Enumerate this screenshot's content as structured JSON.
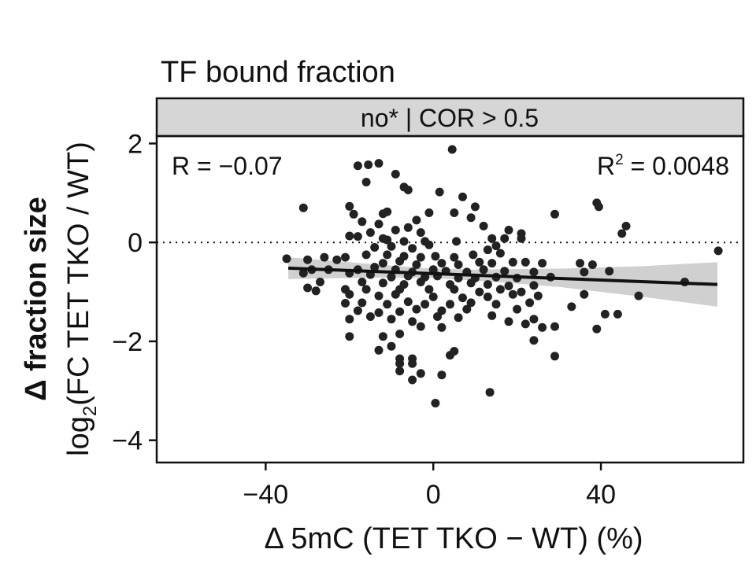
{
  "chart_data": {
    "type": "scatter",
    "title": "TF bound fraction",
    "facet_label": "no* | COR > 0.5",
    "xlabel": "Δ 5mC (TET TKO − WT) (%)",
    "ylabel_bold": "Δ fraction size",
    "ylabel_main": "log",
    "ylabel_sub": "2",
    "ylabel_rest": "(FC TET TKO / WT)",
    "annotation_left": "R = −0.07",
    "annotation_right_prefix": "R",
    "annotation_right_sup": "2",
    "annotation_right_suffix": " = 0.0048",
    "xlim": [
      -66,
      74
    ],
    "ylim": [
      -4.45,
      2.15
    ],
    "x_ticks": [
      -40,
      0,
      40
    ],
    "x_tick_labels": [
      "−40",
      "0",
      "40"
    ],
    "y_ticks": [
      2,
      0,
      -2,
      -4
    ],
    "y_tick_labels": [
      "2",
      "0",
      "−2",
      "−4"
    ],
    "reference_line_y": 0,
    "point_color": "#222222",
    "fit_color": "#111111",
    "band_color": "#c8c8c8",
    "facet_color": "#d6d6d6",
    "fit_line": {
      "x": [
        -34.6,
        67.8
      ],
      "y": [
        -0.52,
        -0.85
      ]
    },
    "confidence_band": {
      "x": [
        -34.6,
        -10,
        0,
        10,
        30,
        50,
        67.8
      ],
      "upper": [
        -0.3,
        -0.47,
        -0.53,
        -0.55,
        -0.53,
        -0.48,
        -0.4
      ],
      "lower": [
        -0.74,
        -0.71,
        -0.72,
        -0.77,
        -0.9,
        -1.1,
        -1.3
      ]
    },
    "points": [
      [
        4.5,
        1.88
      ],
      [
        -15.5,
        1.57
      ],
      [
        -13,
        1.6
      ],
      [
        -18,
        1.55
      ],
      [
        -9,
        1.38
      ],
      [
        -16,
        1.22
      ],
      [
        -7,
        1.12
      ],
      [
        -6,
        1.06
      ],
      [
        1.5,
        1.02
      ],
      [
        7,
        0.92
      ],
      [
        -31,
        0.7
      ],
      [
        -20,
        0.73
      ],
      [
        -1,
        0.6
      ],
      [
        -19,
        0.57
      ],
      [
        -11,
        0.62
      ],
      [
        -12,
        0.58
      ],
      [
        10,
        0.72
      ],
      [
        5,
        0.6
      ],
      [
        9,
        0.5
      ],
      [
        -4,
        0.45
      ],
      [
        -17,
        0.42
      ],
      [
        39,
        0.8
      ],
      [
        39.5,
        0.72
      ],
      [
        29,
        0.57
      ],
      [
        12,
        0.33
      ],
      [
        -13,
        0.37
      ],
      [
        -6,
        0.3
      ],
      [
        -9,
        0.25
      ],
      [
        -3,
        0.2
      ],
      [
        18,
        0.25
      ],
      [
        21,
        0.18
      ],
      [
        46,
        0.33
      ],
      [
        45,
        0.18
      ],
      [
        -18,
        0.12
      ],
      [
        -20,
        0.13
      ],
      [
        -15,
        0.2
      ],
      [
        -12,
        0.08
      ],
      [
        -11,
        0.05
      ],
      [
        -7,
        0.02
      ],
      [
        -2,
        0.02
      ],
      [
        5.5,
        0.02
      ],
      [
        14,
        0.08
      ],
      [
        17,
        0.08
      ],
      [
        21,
        0.08
      ],
      [
        15,
        -0.07
      ],
      [
        -14,
        -0.1
      ],
      [
        -10,
        -0.08
      ],
      [
        -5,
        -0.12
      ],
      [
        -1,
        -0.05
      ],
      [
        13,
        -0.15
      ],
      [
        68,
        -0.17
      ],
      [
        -26,
        -0.3
      ],
      [
        -21,
        -0.3
      ],
      [
        -16,
        -0.25
      ],
      [
        -11,
        -0.25
      ],
      [
        -7,
        -0.28
      ],
      [
        -3,
        -0.3
      ],
      [
        0.5,
        -0.28
      ],
      [
        5,
        -0.3
      ],
      [
        9.5,
        -0.25
      ],
      [
        16,
        -0.22
      ],
      [
        -35,
        -0.33
      ],
      [
        -30,
        -0.35
      ],
      [
        -23,
        -0.35
      ],
      [
        -12,
        -0.42
      ],
      [
        -8,
        -0.38
      ],
      [
        -4,
        -0.45
      ],
      [
        2,
        -0.42
      ],
      [
        6,
        -0.45
      ],
      [
        11,
        -0.4
      ],
      [
        14,
        -0.42
      ],
      [
        19,
        -0.4
      ],
      [
        22,
        -0.4
      ],
      [
        26,
        -0.42
      ],
      [
        35,
        -0.42
      ],
      [
        38,
        -0.45
      ],
      [
        -29,
        -0.55
      ],
      [
        -25,
        -0.55
      ],
      [
        -18,
        -0.55
      ],
      [
        -14,
        -0.5
      ],
      [
        -9,
        -0.55
      ],
      [
        -5,
        -0.6
      ],
      [
        0,
        -0.55
      ],
      [
        3,
        -0.58
      ],
      [
        8,
        -0.6
      ],
      [
        12,
        -0.55
      ],
      [
        17,
        -0.58
      ],
      [
        24,
        -0.6
      ],
      [
        36,
        -0.6
      ],
      [
        42,
        -0.58
      ],
      [
        -31,
        -0.62
      ],
      [
        -20,
        -0.62
      ],
      [
        -15,
        -0.65
      ],
      [
        -10,
        -0.7
      ],
      [
        -6,
        -0.68
      ],
      [
        -2,
        -0.7
      ],
      [
        1,
        -0.68
      ],
      [
        6,
        -0.72
      ],
      [
        10,
        -0.72
      ],
      [
        15,
        -0.7
      ],
      [
        20,
        -0.72
      ],
      [
        28,
        -0.7
      ],
      [
        -27,
        -0.8
      ],
      [
        -17,
        -0.8
      ],
      [
        -12,
        -0.82
      ],
      [
        -7,
        -0.85
      ],
      [
        -3,
        -0.8
      ],
      [
        4,
        -0.85
      ],
      [
        9,
        -0.82
      ],
      [
        13,
        -0.85
      ],
      [
        18,
        -0.88
      ],
      [
        24,
        -0.87
      ],
      [
        60,
        -0.8
      ],
      [
        -30,
        -0.92
      ],
      [
        -21,
        -0.95
      ],
      [
        -16,
        -0.95
      ],
      [
        -8,
        -0.95
      ],
      [
        -1,
        -0.95
      ],
      [
        5,
        -0.95
      ],
      [
        11,
        -1.0
      ],
      [
        16,
        -0.95
      ],
      [
        21,
        -1.0
      ],
      [
        -28,
        -0.98
      ],
      [
        -20,
        -1.05
      ],
      [
        -13,
        -1.08
      ],
      [
        -9,
        -1.05
      ],
      [
        0,
        -1.1
      ],
      [
        7,
        -1.12
      ],
      [
        13,
        -1.1
      ],
      [
        19,
        -1.05
      ],
      [
        25,
        -1.08
      ],
      [
        36,
        -1.05
      ],
      [
        49,
        -1.08
      ],
      [
        -21,
        -1.23
      ],
      [
        -17,
        -1.22
      ],
      [
        -11,
        -1.25
      ],
      [
        -6,
        -1.2
      ],
      [
        -2,
        -1.25
      ],
      [
        4,
        -1.25
      ],
      [
        9,
        -1.22
      ],
      [
        15,
        -1.25
      ],
      [
        23,
        -1.22
      ],
      [
        -18,
        -1.38
      ],
      [
        -13,
        -1.42
      ],
      [
        -8,
        -1.4
      ],
      [
        -4,
        -1.35
      ],
      [
        2,
        -1.38
      ],
      [
        8,
        -1.35
      ],
      [
        20,
        -1.35
      ],
      [
        33,
        -1.3
      ],
      [
        41,
        -1.45
      ],
      [
        44,
        -1.45
      ],
      [
        -20,
        -1.55
      ],
      [
        -15,
        -1.5
      ],
      [
        -10,
        -1.55
      ],
      [
        -5,
        -1.6
      ],
      [
        1,
        -1.5
      ],
      [
        6,
        -1.52
      ],
      [
        14,
        -1.48
      ],
      [
        18,
        -1.6
      ],
      [
        24,
        -1.55
      ],
      [
        -3,
        -1.7
      ],
      [
        2,
        -1.72
      ],
      [
        26,
        -1.72
      ],
      [
        39,
        -1.75
      ],
      [
        22,
        -1.65
      ],
      [
        -20,
        -1.9
      ],
      [
        -12,
        -1.9
      ],
      [
        -8,
        -1.85
      ],
      [
        29,
        -1.7
      ],
      [
        -10,
        -2.1
      ],
      [
        -13,
        -2.18
      ],
      [
        4,
        -2.28
      ],
      [
        5,
        -2.2
      ],
      [
        -5,
        -2.35
      ],
      [
        -8,
        -2.35
      ],
      [
        -5,
        -2.45
      ],
      [
        -8,
        -2.45
      ],
      [
        29,
        -2.3
      ],
      [
        -8,
        -2.6
      ],
      [
        -3,
        -2.65
      ],
      [
        2,
        -2.68
      ],
      [
        -5,
        -2.78
      ],
      [
        13.5,
        -3.03
      ],
      [
        0.5,
        -3.25
      ],
      [
        24,
        -1.98
      ]
    ]
  }
}
